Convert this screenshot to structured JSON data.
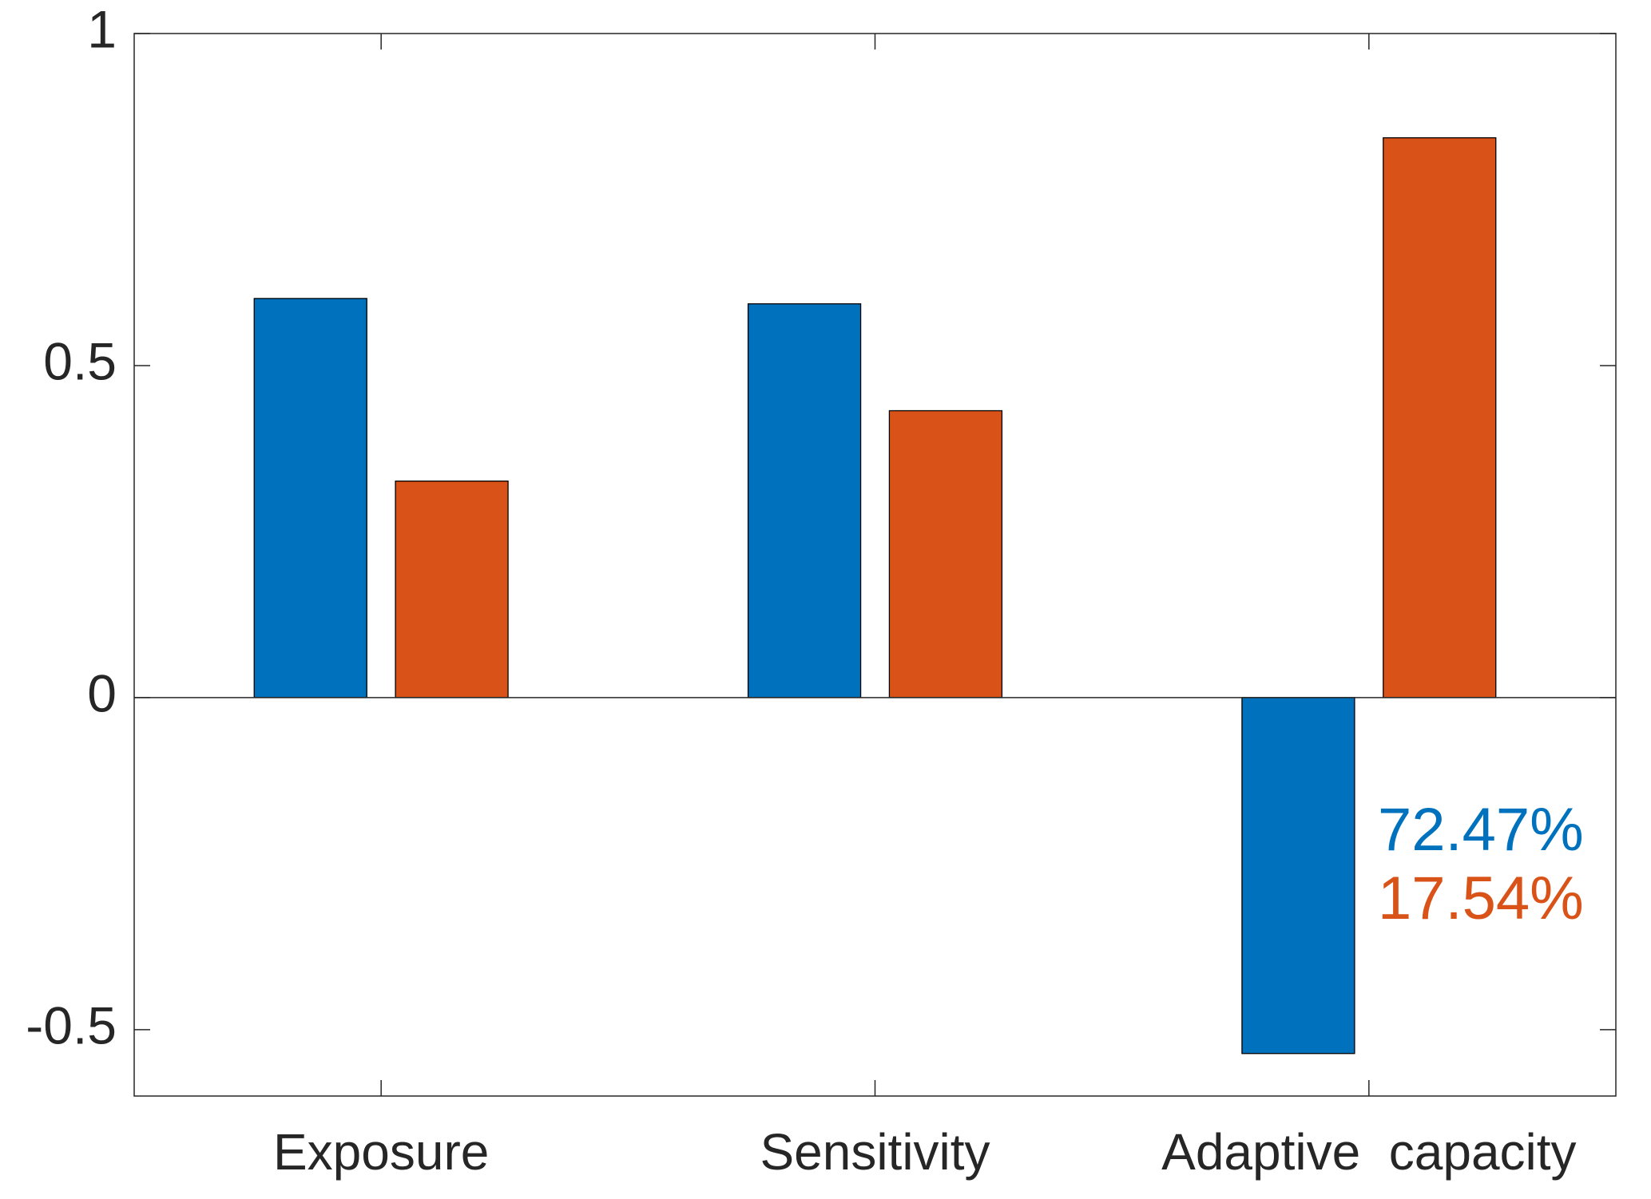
{
  "chart_data": {
    "type": "bar",
    "categories": [
      "Exposure",
      "Sensitivity",
      "Adaptive  capacity"
    ],
    "series": [
      {
        "color": "#0072bd",
        "values": [
          0.601,
          0.593,
          -0.536
        ]
      },
      {
        "color": "#d95319",
        "values": [
          0.326,
          0.432,
          0.843
        ]
      }
    ],
    "ylim": [
      -0.6,
      1
    ],
    "yticks": [
      -0.5,
      0,
      0.5,
      1
    ],
    "annotations": [
      {
        "text": "72.47%",
        "color": "#0072bd"
      },
      {
        "text": "17.54%",
        "color": "#d95319"
      }
    ]
  }
}
